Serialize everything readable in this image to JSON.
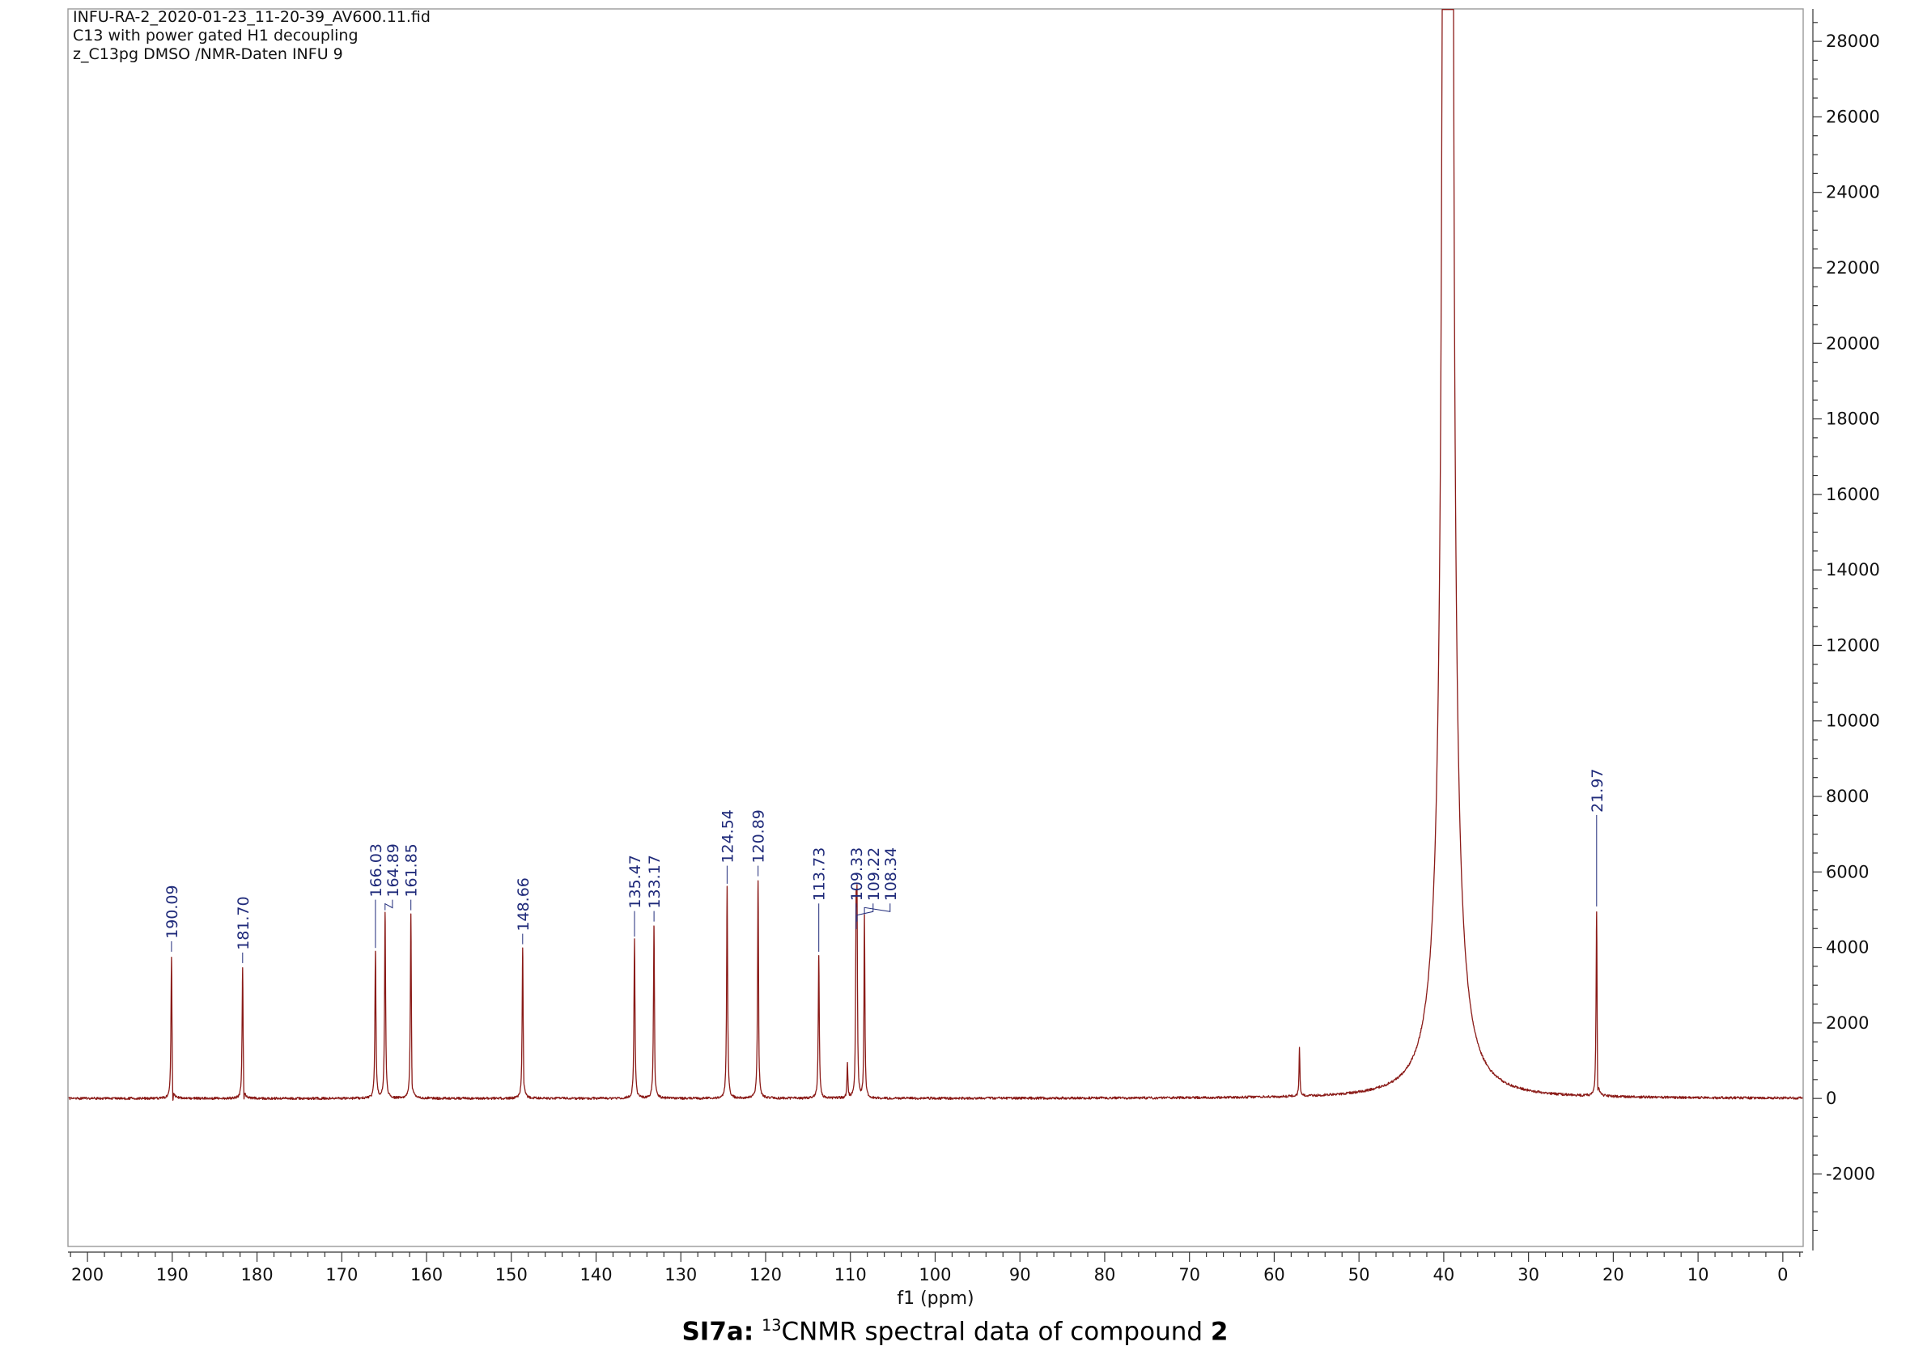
{
  "header": {
    "line1": "INFU-RA-2_2020-01-23_11-20-39_AV600.11.fid",
    "line2": "C13 with power gated H1 decoupling",
    "line3": "z_C13pg DMSO /NMR-Daten INFU 9"
  },
  "caption": {
    "prefix": "SI7a:",
    "superscript": "13",
    "body": "CNMR spectral data of compound",
    "compound": "2"
  },
  "chart_data": {
    "type": "line",
    "kind": "13C NMR spectrum",
    "xlabel": "f1 (ppm)",
    "x_axis": {
      "max": 202.3,
      "min": -2.4,
      "reversed": true,
      "tick_max": 200,
      "tick_min": 0,
      "major_tick_step": 10,
      "minor_tick_step": 2
    },
    "y_axis": {
      "min": -3920,
      "max": 28860,
      "label_min": -2000,
      "label_max": 28000,
      "major_tick_step": 2000,
      "minor_tick_step": 500,
      "side": "right"
    },
    "line_color": "#8a1a17",
    "label_color": "#1f2a7a",
    "axis_text_color": "#111111",
    "noise_amplitude": 32,
    "peaks": [
      {
        "ppm": 190.09,
        "intensity": 3800,
        "width": 0.07,
        "label": "190.09"
      },
      {
        "ppm": 181.7,
        "intensity": 3500,
        "width": 0.07,
        "label": "181.70"
      },
      {
        "ppm": 166.03,
        "intensity": 3900,
        "width": 0.07,
        "label": "166.03"
      },
      {
        "ppm": 164.89,
        "intensity": 4900,
        "width": 0.07,
        "label": "164.89"
      },
      {
        "ppm": 161.85,
        "intensity": 4900,
        "width": 0.07,
        "label": "161.85"
      },
      {
        "ppm": 148.66,
        "intensity": 4000,
        "width": 0.07,
        "label": "148.66"
      },
      {
        "ppm": 135.47,
        "intensity": 4200,
        "width": 0.07,
        "label": "135.47"
      },
      {
        "ppm": 133.17,
        "intensity": 4600,
        "width": 0.07,
        "label": "133.17"
      },
      {
        "ppm": 124.54,
        "intensity": 5600,
        "width": 0.07,
        "label": "124.54"
      },
      {
        "ppm": 120.89,
        "intensity": 5800,
        "width": 0.07,
        "label": "120.89"
      },
      {
        "ppm": 113.73,
        "intensity": 3800,
        "width": 0.07,
        "label": "113.73"
      },
      {
        "ppm": 109.33,
        "intensity": 4400,
        "width": 0.06,
        "label": "109.33"
      },
      {
        "ppm": 109.22,
        "intensity": 4600,
        "width": 0.06,
        "label": "109.22"
      },
      {
        "ppm": 108.34,
        "intensity": 4800,
        "width": 0.06,
        "label": "108.34"
      },
      {
        "ppm": 21.97,
        "intensity": 5000,
        "width": 0.07,
        "label": "21.97"
      }
    ],
    "unlabeled_features": [
      {
        "ppm": 57.02,
        "intensity": 1300,
        "width": 0.06
      },
      {
        "ppm": 39.52,
        "intensity": 300000,
        "width": 0.18
      },
      {
        "ppm": 39.52,
        "intensity": 4200,
        "width": 1.5
      },
      {
        "ppm": 39.24,
        "intensity": 40000,
        "width": 0.08
      },
      {
        "ppm": 39.8,
        "intensity": 40000,
        "width": 0.08
      },
      {
        "ppm": 38.96,
        "intensity": 12000,
        "width": 0.08
      },
      {
        "ppm": 40.08,
        "intensity": 12000,
        "width": 0.08
      },
      {
        "ppm": 110.35,
        "intensity": 900,
        "width": 0.06
      },
      {
        "ppm": 189.93,
        "intensity": -650,
        "width": 0.05
      },
      {
        "ppm": 181.54,
        "intensity": -550,
        "width": 0.05
      },
      {
        "ppm": 161.7,
        "intensity": -500,
        "width": 0.05
      },
      {
        "ppm": 148.52,
        "intensity": -350,
        "width": 0.05
      },
      {
        "ppm": 133.04,
        "intensity": -300,
        "width": 0.05
      },
      {
        "ppm": 120.77,
        "intensity": -300,
        "width": 0.05
      },
      {
        "ppm": 21.84,
        "intensity": -800,
        "width": 0.06
      }
    ]
  }
}
